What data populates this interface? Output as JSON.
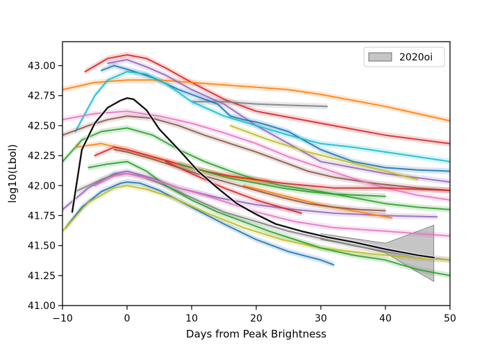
{
  "chart_data": {
    "type": "line",
    "title": "",
    "xlabel": "Days from Peak Brightness",
    "ylabel": "log10(Lbol)",
    "xlim": [
      -10,
      50
    ],
    "ylim": [
      41.0,
      43.2
    ],
    "xticks": [
      -10,
      0,
      10,
      20,
      30,
      40,
      50
    ],
    "xtick_labels": [
      "−10",
      "0",
      "10",
      "20",
      "30",
      "40",
      "50"
    ],
    "yticks": [
      41.0,
      41.25,
      41.5,
      41.75,
      42.0,
      42.25,
      42.5,
      42.75,
      43.0
    ],
    "ytick_labels": [
      "41.00",
      "41.25",
      "41.50",
      "41.75",
      "42.00",
      "42.25",
      "42.50",
      "42.75",
      "43.00"
    ],
    "grid": false,
    "legend": {
      "position": "top-right",
      "entries": [
        {
          "label": "2020oi",
          "color": "#7f7f7f",
          "kind": "band"
        }
      ]
    },
    "highlight": {
      "name": "2020oi",
      "color": "#111111",
      "x": [
        -8.5,
        -7,
        -5,
        -3,
        -1,
        0,
        1,
        3,
        5,
        8,
        11,
        14,
        17,
        20,
        23,
        27,
        31,
        35,
        40,
        45,
        47.5
      ],
      "y": [
        41.78,
        42.3,
        42.52,
        42.65,
        42.71,
        42.73,
        42.72,
        42.63,
        42.47,
        42.3,
        42.12,
        41.98,
        41.85,
        41.76,
        41.68,
        41.62,
        41.57,
        41.53,
        41.47,
        41.42,
        41.4
      ],
      "band_x": [
        30,
        35,
        40,
        44,
        47.5
      ],
      "band_upper": [
        41.6,
        41.56,
        41.52,
        41.6,
        41.67
      ],
      "band_lower": [
        41.55,
        41.5,
        41.44,
        41.31,
        41.2
      ]
    },
    "series": [
      {
        "color": "#d62728",
        "x": [
          -6.5,
          -3,
          0,
          3,
          6,
          10,
          15,
          20,
          30,
          40,
          50
        ],
        "y": [
          42.95,
          43.06,
          43.09,
          43.06,
          42.98,
          42.86,
          42.72,
          42.62,
          42.52,
          42.42,
          42.35
        ]
      },
      {
        "color": "#ff7f0e",
        "x": [
          -10,
          -5,
          0,
          5,
          10,
          15,
          20,
          25,
          30,
          35,
          40,
          45,
          50
        ],
        "y": [
          42.8,
          42.86,
          42.88,
          42.88,
          42.86,
          42.84,
          42.82,
          42.8,
          42.76,
          42.71,
          42.66,
          42.6,
          42.54
        ]
      },
      {
        "color": "#7f7f7f",
        "x": [
          10,
          15,
          20,
          25,
          31
        ],
        "y": [
          42.7,
          42.7,
          42.68,
          42.67,
          42.66
        ]
      },
      {
        "color": "#9467bd",
        "x": [
          -3,
          0,
          3,
          6,
          10,
          15,
          20,
          25,
          30,
          40,
          50
        ],
        "y": [
          43.02,
          43.05,
          42.99,
          42.92,
          42.8,
          42.68,
          42.5,
          42.35,
          42.2,
          42.1,
          42.03
        ]
      },
      {
        "color": "#1f77b4",
        "x": [
          -4,
          -2,
          0,
          4,
          8,
          12,
          14,
          16,
          18,
          20,
          22,
          25,
          30,
          35,
          40,
          45,
          50
        ],
        "y": [
          42.96,
          43.0,
          42.97,
          42.9,
          42.8,
          42.72,
          42.68,
          42.58,
          42.55,
          42.53,
          42.5,
          42.45,
          42.3,
          42.2,
          42.15,
          42.13,
          42.12
        ]
      },
      {
        "color": "#17becf",
        "x": [
          -8,
          -5,
          -3,
          0,
          3,
          6,
          10,
          15,
          20,
          25,
          30,
          35,
          40,
          45,
          50
        ],
        "y": [
          42.45,
          42.75,
          42.88,
          42.95,
          42.93,
          42.85,
          42.7,
          42.58,
          42.5,
          42.42,
          42.35,
          42.32,
          42.28,
          42.24,
          42.2
        ]
      },
      {
        "color": "#bcbd22",
        "x": [
          16,
          22,
          28,
          34,
          40,
          45
        ],
        "y": [
          42.5,
          42.38,
          42.28,
          42.2,
          42.12,
          42.05
        ]
      },
      {
        "color": "#8c564b",
        "x": [
          -10,
          -6,
          -3,
          0,
          4,
          8,
          12,
          16,
          20,
          24,
          28,
          32,
          38,
          45,
          50
        ],
        "y": [
          42.42,
          42.5,
          42.55,
          42.58,
          42.56,
          42.5,
          42.42,
          42.35,
          42.28,
          42.2,
          42.12,
          42.07,
          42.02,
          41.98,
          41.96
        ]
      },
      {
        "color": "#e377c2",
        "x": [
          -10,
          -5,
          0,
          5,
          10,
          15,
          20,
          25,
          30,
          35,
          40,
          45,
          50
        ],
        "y": [
          42.55,
          42.6,
          42.62,
          42.58,
          42.52,
          42.44,
          42.35,
          42.24,
          42.15,
          42.06,
          41.98,
          41.92,
          41.88
        ]
      },
      {
        "color": "#2ca02c",
        "x": [
          -10,
          -7,
          -4,
          0,
          4,
          8,
          12,
          16,
          20,
          24,
          30,
          35,
          40,
          45,
          50
        ],
        "y": [
          42.2,
          42.38,
          42.45,
          42.48,
          42.42,
          42.3,
          42.2,
          42.12,
          42.05,
          42.0,
          41.95,
          41.9,
          41.85,
          41.82,
          41.8
        ]
      },
      {
        "color": "#ff7f0e",
        "x": [
          -8,
          -4,
          0,
          5,
          10,
          15,
          22
        ],
        "y": [
          42.32,
          42.35,
          42.3,
          42.22,
          42.15,
          42.08,
          42.03
        ]
      },
      {
        "color": "#d62728",
        "x": [
          -5,
          -2,
          0,
          4,
          8,
          12,
          16,
          20,
          24,
          28,
          32,
          36,
          40,
          45,
          50
        ],
        "y": [
          42.25,
          42.32,
          42.3,
          42.24,
          42.18,
          42.12,
          42.08,
          42.05,
          42.02,
          42.0,
          41.98,
          41.98,
          41.98,
          41.97,
          41.96
        ]
      },
      {
        "color": "#9467bd",
        "x": [
          -10,
          -6,
          -2,
          0,
          4,
          8,
          14,
          20,
          26,
          32,
          40,
          48
        ],
        "y": [
          41.8,
          41.98,
          42.1,
          42.12,
          42.06,
          41.98,
          41.9,
          41.84,
          41.8,
          41.77,
          41.75,
          41.74
        ]
      },
      {
        "color": "#7f7f7f",
        "x": [
          -8,
          -4,
          -2,
          0,
          2,
          5,
          8,
          12,
          15,
          20,
          25,
          30,
          35,
          40,
          45,
          50
        ],
        "y": [
          41.95,
          42.05,
          42.09,
          42.1,
          42.08,
          42.02,
          41.95,
          41.85,
          41.78,
          41.7,
          41.62,
          41.56,
          41.5,
          41.45,
          41.41,
          41.38
        ]
      },
      {
        "color": "#1f77b4",
        "x": [
          -9.5,
          -7,
          -4,
          -1,
          0,
          2,
          5,
          10,
          15,
          20,
          25,
          30,
          32
        ],
        "y": [
          41.65,
          41.82,
          41.95,
          42.02,
          42.03,
          42.02,
          41.96,
          41.82,
          41.68,
          41.55,
          41.45,
          41.38,
          41.34
        ]
      },
      {
        "color": "#bcbd22",
        "x": [
          -10,
          -6,
          -2,
          0,
          3,
          7,
          12,
          18,
          24,
          30,
          38,
          44,
          50
        ],
        "y": [
          41.62,
          41.86,
          41.98,
          42.0,
          41.97,
          41.9,
          41.78,
          41.65,
          41.55,
          41.48,
          41.43,
          41.4,
          41.38
        ]
      },
      {
        "color": "#2ca02c",
        "x": [
          -6,
          -3,
          0,
          3,
          6,
          10,
          14,
          18,
          22,
          26,
          30,
          35,
          40,
          45,
          50
        ],
        "y": [
          42.15,
          42.18,
          42.2,
          42.12,
          42.0,
          41.88,
          41.78,
          41.7,
          41.62,
          41.55,
          41.48,
          41.42,
          41.38,
          41.3,
          41.25
        ]
      },
      {
        "color": "#e377c2",
        "x": [
          -5,
          -2,
          0,
          4,
          8,
          12,
          16,
          20,
          26,
          32,
          40,
          45,
          50
        ],
        "y": [
          42.0,
          42.08,
          42.1,
          42.05,
          41.98,
          41.92,
          41.85,
          41.78,
          41.7,
          41.65,
          41.62,
          41.6,
          41.58
        ]
      },
      {
        "color": "#d62728",
        "x": [
          6,
          10,
          15,
          20,
          25,
          27
        ],
        "y": [
          42.2,
          42.1,
          41.98,
          41.88,
          41.8,
          41.77
        ]
      },
      {
        "color": "#ff7f0e",
        "x": [
          18,
          24,
          30,
          36,
          41
        ],
        "y": [
          42.0,
          41.92,
          41.84,
          41.78,
          41.73
        ]
      },
      {
        "color": "#2ca02c",
        "x": [
          8,
          12,
          16,
          20,
          24,
          28,
          32,
          36,
          40
        ],
        "y": [
          42.18,
          42.12,
          42.06,
          42.02,
          41.98,
          41.95,
          41.93,
          41.92,
          41.91
        ]
      },
      {
        "color": "#8c564b",
        "x": [
          -2,
          0,
          4,
          8,
          12,
          16,
          20,
          24,
          28,
          32,
          36,
          40
        ],
        "y": [
          42.3,
          42.28,
          42.22,
          42.15,
          42.08,
          42.02,
          41.96,
          41.9,
          41.85,
          41.82,
          41.8,
          41.79
        ]
      }
    ]
  }
}
